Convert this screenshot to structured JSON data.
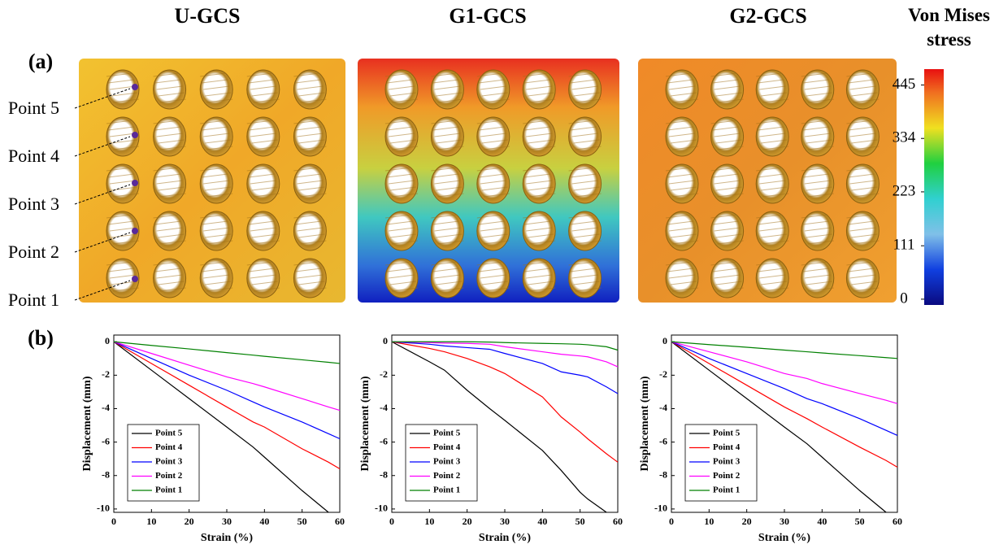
{
  "figure": {
    "column_titles": [
      "U-GCS",
      "G1-GCS",
      "G2-GCS"
    ],
    "panel_labels": [
      "(a)",
      "(b)"
    ],
    "points": [
      "Point 5",
      "Point 4",
      "Point 3",
      "Point 2",
      "Point 1"
    ],
    "colorbar": {
      "title": "Von Mises stress",
      "lim": [
        -12,
        478
      ],
      "ticks": [
        0,
        111,
        223,
        334,
        445
      ]
    }
  },
  "chart_data": [
    {
      "type": "line",
      "xlabel": "Strain (%)",
      "ylabel": "Displacement (mm)",
      "x": [
        0,
        10,
        20,
        30,
        37,
        40,
        50,
        57,
        60
      ],
      "xlim": [
        0,
        60
      ],
      "xticks": [
        0,
        10,
        20,
        30,
        40,
        50,
        60
      ],
      "ylim": [
        -10.2,
        0.4
      ],
      "yticks": [
        0,
        -2,
        -4,
        -6,
        -8,
        -10
      ],
      "legend": "lower left",
      "series": [
        {
          "name": "Point 5",
          "color": "#000000",
          "values": [
            0,
            -1.7,
            -3.4,
            -5.1,
            -6.3,
            -6.9,
            -8.9,
            -10.2,
            null
          ]
        },
        {
          "name": "Point 4",
          "color": "#ff0000",
          "values": [
            0,
            -1.3,
            -2.6,
            -3.9,
            -4.8,
            -5.1,
            -6.4,
            -7.2,
            -7.6
          ]
        },
        {
          "name": "Point 3",
          "color": "#0000ff",
          "values": [
            0,
            -1.0,
            -2.0,
            -2.9,
            -3.6,
            -3.9,
            -4.8,
            -5.5,
            -5.8
          ]
        },
        {
          "name": "Point 2",
          "color": "#ff00ff",
          "values": [
            0,
            -0.7,
            -1.4,
            -2.1,
            -2.5,
            -2.7,
            -3.4,
            -3.9,
            -4.1
          ]
        },
        {
          "name": "Point 1",
          "color": "#008000",
          "values": [
            0,
            -0.22,
            -0.43,
            -0.65,
            -0.8,
            -0.87,
            -1.08,
            -1.23,
            -1.3
          ]
        }
      ]
    },
    {
      "type": "line",
      "xlabel": "Strain (%)",
      "ylabel": "Displacement (mm)",
      "x": [
        0,
        10,
        14,
        20,
        26,
        30,
        40,
        45,
        50,
        52,
        57,
        60
      ],
      "xlim": [
        0,
        60
      ],
      "xticks": [
        0,
        10,
        20,
        30,
        40,
        50,
        60
      ],
      "ylim": [
        -10.2,
        0.4
      ],
      "yticks": [
        0,
        -2,
        -4,
        -6,
        -8,
        -10
      ],
      "legend": "lower left",
      "series": [
        {
          "name": "Point 5",
          "color": "#000000",
          "values": [
            0,
            -1.2,
            -1.7,
            -2.9,
            -4.0,
            -4.7,
            -6.5,
            -7.7,
            -9.0,
            -9.4,
            -10.2,
            null
          ]
        },
        {
          "name": "Point 4",
          "color": "#ff0000",
          "values": [
            0,
            -0.4,
            -0.6,
            -1.0,
            -1.5,
            -1.9,
            -3.3,
            -4.5,
            -5.4,
            -5.8,
            -6.7,
            -7.2
          ]
        },
        {
          "name": "Point 3",
          "color": "#0000ff",
          "values": [
            0,
            -0.15,
            -0.25,
            -0.35,
            -0.45,
            -0.7,
            -1.3,
            -1.8,
            -2.0,
            -2.1,
            -2.7,
            -3.1
          ]
        },
        {
          "name": "Point 2",
          "color": "#ff00ff",
          "values": [
            0,
            -0.05,
            -0.08,
            -0.1,
            -0.15,
            -0.3,
            -0.6,
            -0.75,
            -0.85,
            -0.9,
            -1.2,
            -1.5
          ]
        },
        {
          "name": "Point 1",
          "color": "#008000",
          "values": [
            0,
            0,
            0,
            0,
            -0.02,
            -0.05,
            -0.1,
            -0.12,
            -0.15,
            -0.18,
            -0.3,
            -0.5
          ]
        }
      ]
    },
    {
      "type": "line",
      "xlabel": "Strain (%)",
      "ylabel": "Displacement (mm)",
      "x": [
        0,
        10,
        20,
        30,
        36,
        40,
        50,
        57,
        60
      ],
      "xlim": [
        0,
        60
      ],
      "xticks": [
        0,
        10,
        20,
        30,
        40,
        50,
        60
      ],
      "ylim": [
        -10.2,
        0.4
      ],
      "yticks": [
        0,
        -2,
        -4,
        -6,
        -8,
        -10
      ],
      "legend": "lower left",
      "series": [
        {
          "name": "Point 5",
          "color": "#000000",
          "values": [
            0,
            -1.7,
            -3.4,
            -5.1,
            -6.1,
            -6.9,
            -8.9,
            -10.2,
            null
          ]
        },
        {
          "name": "Point 4",
          "color": "#ff0000",
          "values": [
            0,
            -1.3,
            -2.6,
            -3.9,
            -4.6,
            -5.1,
            -6.3,
            -7.1,
            -7.5
          ]
        },
        {
          "name": "Point 3",
          "color": "#0000ff",
          "values": [
            0,
            -1.0,
            -1.9,
            -2.8,
            -3.4,
            -3.7,
            -4.6,
            -5.3,
            -5.6
          ]
        },
        {
          "name": "Point 2",
          "color": "#ff00ff",
          "values": [
            0,
            -0.6,
            -1.2,
            -1.9,
            -2.2,
            -2.5,
            -3.1,
            -3.5,
            -3.7
          ]
        },
        {
          "name": "Point 1",
          "color": "#008000",
          "values": [
            0,
            -0.17,
            -0.33,
            -0.5,
            -0.6,
            -0.67,
            -0.83,
            -0.95,
            -1.0
          ]
        }
      ]
    }
  ]
}
